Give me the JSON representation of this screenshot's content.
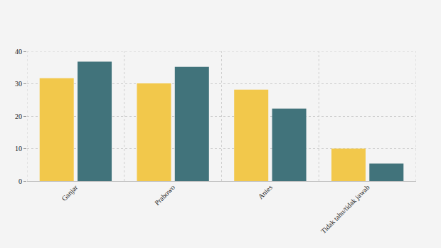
{
  "chart_data": {
    "type": "bar",
    "categories": [
      "Ganjar",
      "Prabowo",
      "Anies",
      "Tidak tahu/tidak jawab"
    ],
    "series": [
      {
        "color": "#f2c84b",
        "values": [
          31.7,
          30.1,
          28.2,
          10.0
        ]
      },
      {
        "color": "#41737b",
        "values": [
          36.8,
          35.2,
          22.3,
          5.4
        ]
      }
    ],
    "ylim": [
      0,
      40
    ],
    "yticks": [
      0,
      10,
      20,
      30,
      40
    ],
    "grid": true
  }
}
